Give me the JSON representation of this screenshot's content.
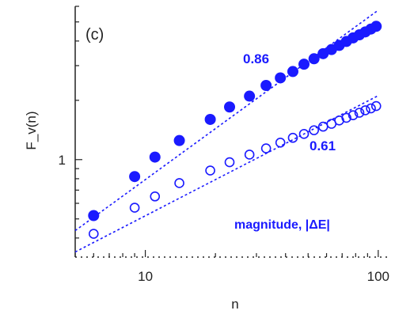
{
  "chart_data": {
    "type": "scatter",
    "panel_label": "(c)",
    "xlabel": "n",
    "ylabel": "F_v(n)",
    "xscale": "log",
    "yscale": "log",
    "xlim": [
      5,
      110
    ],
    "ylim": [
      0.32,
      6
    ],
    "xticks": [
      {
        "value": 10,
        "label": "10"
      },
      {
        "value": 100,
        "label": "100"
      }
    ],
    "yticks": [
      {
        "value": 1,
        "label": "1"
      }
    ],
    "series_label": "magnitude, |ΔE|",
    "colors": {
      "series": "#1a1aff",
      "axis": "#222222"
    },
    "series": [
      {
        "marker": "filled-circle",
        "slope_label": "0.86",
        "x": [
          6,
          9,
          11,
          14,
          19,
          23,
          28,
          33,
          38,
          43,
          48,
          53,
          58,
          63,
          68,
          73,
          78,
          83,
          88,
          93,
          98
        ],
        "y": [
          0.52,
          0.82,
          1.03,
          1.25,
          1.6,
          1.85,
          2.1,
          2.38,
          2.6,
          2.8,
          3.05,
          3.25,
          3.45,
          3.62,
          3.8,
          3.98,
          4.15,
          4.3,
          4.45,
          4.6,
          4.75
        ]
      },
      {
        "marker": "open-circle",
        "slope_label": "0.61",
        "x": [
          6,
          9,
          11,
          14,
          19,
          23,
          28,
          33,
          38,
          43,
          48,
          53,
          58,
          63,
          68,
          73,
          78,
          83,
          88,
          93,
          98
        ],
        "y": [
          0.42,
          0.57,
          0.65,
          0.76,
          0.88,
          0.97,
          1.06,
          1.14,
          1.22,
          1.29,
          1.35,
          1.41,
          1.47,
          1.52,
          1.58,
          1.63,
          1.68,
          1.73,
          1.78,
          1.82,
          1.87
        ]
      }
    ],
    "fits": [
      {
        "slope": 0.86,
        "x_range": [
          5,
          100
        ]
      },
      {
        "slope": 0.61,
        "x_range": [
          5,
          100
        ]
      }
    ]
  }
}
